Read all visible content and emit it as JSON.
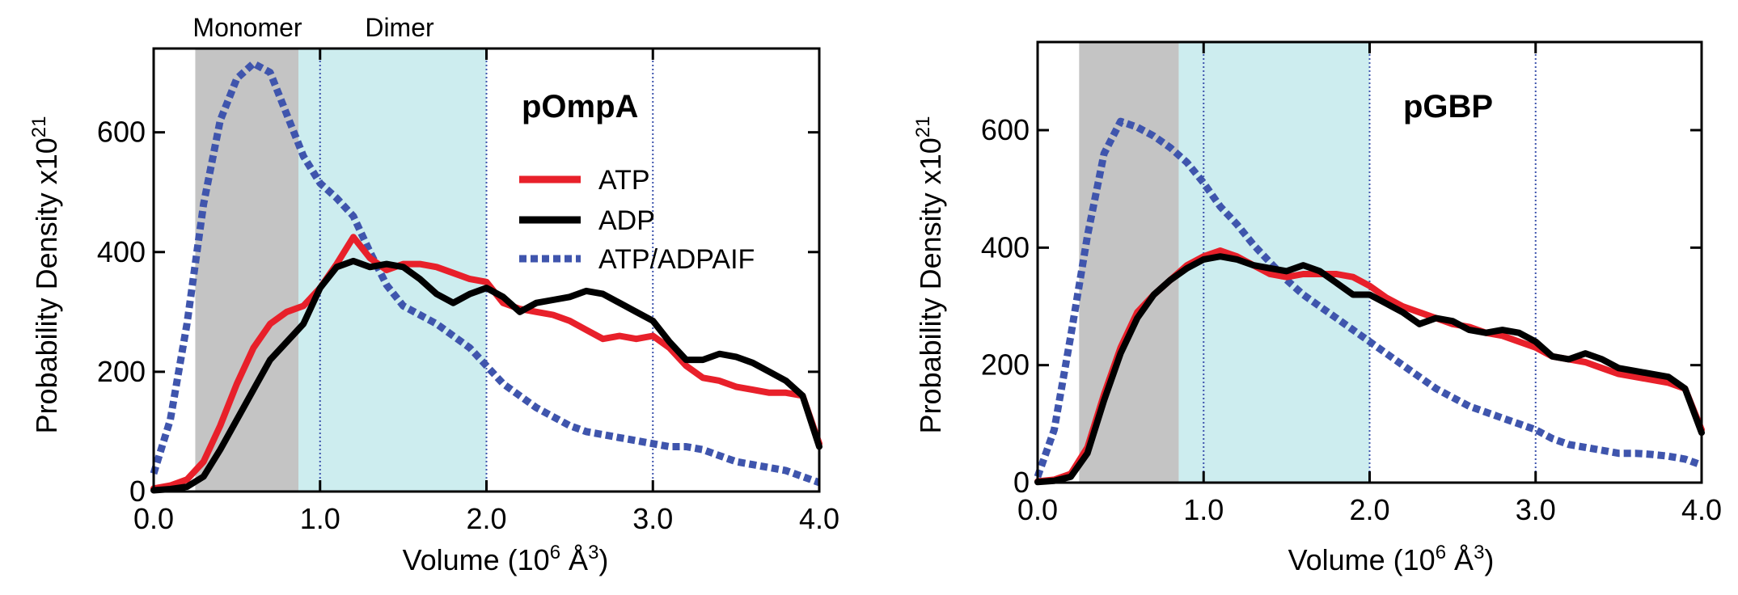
{
  "colors": {
    "atp": "#e8202a",
    "adp": "#000000",
    "alf": "#3f55ad",
    "monomer_band": "#c4c4c4",
    "dimer_band": "#cdedef",
    "grid": "#3f55ad"
  },
  "region_labels": {
    "monomer": "Monomer",
    "dimer": "Dimer"
  },
  "chart_data": [
    {
      "type": "line",
      "title": "pOmpA",
      "xlabel_main": "Volume (10",
      "xlabel_exp": "6",
      "xlabel_unit": " Å",
      "xlabel_unit_exp": "3",
      "xlabel_close": ")",
      "ylabel_main": "Probability Density x10",
      "ylabel_exp": "21",
      "xlim": [
        0,
        4
      ],
      "ylim": [
        0,
        740
      ],
      "xticks": [
        0,
        1,
        2,
        3,
        4
      ],
      "xtick_labels": [
        "0.0",
        "1.0",
        "2.0",
        "3.0",
        "4.0"
      ],
      "yticks": [
        0,
        200,
        400,
        600
      ],
      "ytick_labels": [
        "0",
        "200",
        "400",
        "600"
      ],
      "grid_x": [
        1,
        2,
        3
      ],
      "bands": [
        {
          "name": "monomer",
          "x0": 0.25,
          "x1": 0.87
        },
        {
          "name": "dimer",
          "x0": 0.87,
          "x1": 2.0
        }
      ],
      "legend": {
        "position": "right",
        "entries": [
          "ATP",
          "ADP",
          "ATP/ADPAIF"
        ]
      },
      "series": [
        {
          "name": "ATP",
          "key": "atp",
          "style": "solid",
          "x": [
            0,
            0.1,
            0.2,
            0.3,
            0.4,
            0.5,
            0.6,
            0.7,
            0.8,
            0.9,
            1.0,
            1.1,
            1.2,
            1.3,
            1.4,
            1.5,
            1.6,
            1.7,
            1.8,
            1.9,
            2.0,
            2.1,
            2.2,
            2.3,
            2.4,
            2.5,
            2.6,
            2.7,
            2.8,
            2.9,
            3.0,
            3.1,
            3.2,
            3.3,
            3.4,
            3.5,
            3.6,
            3.7,
            3.8,
            3.9,
            4.0
          ],
          "values": [
            5,
            10,
            20,
            50,
            110,
            180,
            240,
            280,
            300,
            310,
            340,
            380,
            425,
            390,
            370,
            380,
            380,
            375,
            365,
            355,
            350,
            315,
            305,
            300,
            295,
            285,
            270,
            255,
            260,
            255,
            260,
            240,
            210,
            190,
            185,
            175,
            170,
            165,
            165,
            160,
            80
          ]
        },
        {
          "name": "ADP",
          "key": "adp",
          "style": "solid",
          "x": [
            0,
            0.1,
            0.2,
            0.3,
            0.4,
            0.5,
            0.6,
            0.7,
            0.8,
            0.9,
            1.0,
            1.1,
            1.2,
            1.3,
            1.4,
            1.5,
            1.6,
            1.7,
            1.8,
            1.9,
            2.0,
            2.1,
            2.2,
            2.3,
            2.4,
            2.5,
            2.6,
            2.7,
            2.8,
            2.9,
            3.0,
            3.1,
            3.2,
            3.3,
            3.4,
            3.5,
            3.6,
            3.7,
            3.8,
            3.9,
            4.0
          ],
          "values": [
            2,
            4,
            8,
            25,
            70,
            120,
            170,
            220,
            250,
            280,
            340,
            375,
            385,
            375,
            380,
            375,
            355,
            330,
            315,
            330,
            340,
            325,
            300,
            315,
            320,
            325,
            335,
            330,
            315,
            300,
            285,
            250,
            220,
            220,
            230,
            225,
            215,
            200,
            185,
            160,
            75
          ]
        },
        {
          "name": "ATP/ADPAIF",
          "key": "alf",
          "style": "dotted",
          "x": [
            0,
            0.1,
            0.2,
            0.3,
            0.4,
            0.5,
            0.6,
            0.7,
            0.8,
            0.9,
            1.0,
            1.1,
            1.2,
            1.3,
            1.4,
            1.5,
            1.6,
            1.7,
            1.8,
            1.9,
            2.0,
            2.1,
            2.2,
            2.3,
            2.4,
            2.5,
            2.6,
            2.7,
            2.8,
            2.9,
            3.0,
            3.1,
            3.2,
            3.3,
            3.4,
            3.5,
            3.6,
            3.7,
            3.8,
            3.9,
            4.0
          ],
          "values": [
            30,
            120,
            280,
            480,
            620,
            690,
            715,
            700,
            630,
            560,
            515,
            490,
            460,
            400,
            345,
            310,
            295,
            280,
            260,
            240,
            210,
            180,
            160,
            140,
            125,
            110,
            100,
            95,
            90,
            85,
            80,
            75,
            75,
            70,
            60,
            50,
            45,
            40,
            35,
            25,
            15
          ]
        }
      ]
    },
    {
      "type": "line",
      "title": "pGBP",
      "xlabel_main": "Volume (10",
      "xlabel_exp": "6",
      "xlabel_unit": " Å",
      "xlabel_unit_exp": "3",
      "xlabel_close": ")",
      "ylabel_main": "Probability Density x10",
      "ylabel_exp": "21",
      "xlim": [
        0,
        4
      ],
      "ylim": [
        0,
        750
      ],
      "xticks": [
        0,
        1,
        2,
        3,
        4
      ],
      "xtick_labels": [
        "0.0",
        "1.0",
        "2.0",
        "3.0",
        "4.0"
      ],
      "yticks": [
        0,
        200,
        400,
        600
      ],
      "ytick_labels": [
        "0",
        "200",
        "400",
        "600"
      ],
      "grid_x": [
        1,
        2,
        3
      ],
      "bands": [
        {
          "name": "monomer",
          "x0": 0.25,
          "x1": 0.85
        },
        {
          "name": "dimer",
          "x0": 0.85,
          "x1": 2.0
        }
      ],
      "legend": null,
      "series": [
        {
          "name": "ATP",
          "key": "atp",
          "style": "solid",
          "x": [
            0,
            0.1,
            0.2,
            0.3,
            0.4,
            0.5,
            0.6,
            0.7,
            0.8,
            0.9,
            1.0,
            1.1,
            1.2,
            1.3,
            1.4,
            1.5,
            1.6,
            1.7,
            1.8,
            1.9,
            2.0,
            2.1,
            2.2,
            2.3,
            2.4,
            2.5,
            2.6,
            2.7,
            2.8,
            2.9,
            3.0,
            3.1,
            3.2,
            3.3,
            3.4,
            3.5,
            3.6,
            3.7,
            3.8,
            3.9,
            4.0
          ],
          "values": [
            2,
            5,
            15,
            60,
            150,
            230,
            290,
            320,
            345,
            370,
            385,
            395,
            385,
            370,
            355,
            350,
            355,
            355,
            355,
            350,
            335,
            315,
            300,
            290,
            280,
            270,
            265,
            255,
            250,
            240,
            230,
            215,
            210,
            205,
            195,
            185,
            180,
            175,
            170,
            160,
            90
          ]
        },
        {
          "name": "ADP",
          "key": "adp",
          "style": "solid",
          "x": [
            0,
            0.1,
            0.2,
            0.3,
            0.4,
            0.5,
            0.6,
            0.7,
            0.8,
            0.9,
            1.0,
            1.1,
            1.2,
            1.3,
            1.4,
            1.5,
            1.6,
            1.7,
            1.8,
            1.9,
            2.0,
            2.1,
            2.2,
            2.3,
            2.4,
            2.5,
            2.6,
            2.7,
            2.8,
            2.9,
            3.0,
            3.1,
            3.2,
            3.3,
            3.4,
            3.5,
            3.6,
            3.7,
            3.8,
            3.9,
            4.0
          ],
          "values": [
            1,
            3,
            10,
            50,
            140,
            220,
            280,
            320,
            345,
            365,
            380,
            385,
            380,
            370,
            365,
            360,
            370,
            360,
            340,
            320,
            320,
            305,
            290,
            270,
            280,
            275,
            260,
            255,
            260,
            255,
            240,
            215,
            210,
            220,
            210,
            195,
            190,
            185,
            180,
            160,
            85
          ]
        },
        {
          "name": "ATP/ADPAIF",
          "key": "alf",
          "style": "dotted",
          "x": [
            0,
            0.1,
            0.2,
            0.3,
            0.4,
            0.5,
            0.6,
            0.7,
            0.8,
            0.9,
            1.0,
            1.1,
            1.2,
            1.3,
            1.4,
            1.5,
            1.6,
            1.7,
            1.8,
            1.9,
            2.0,
            2.1,
            2.2,
            2.3,
            2.4,
            2.5,
            2.6,
            2.7,
            2.8,
            2.9,
            3.0,
            3.1,
            3.2,
            3.3,
            3.4,
            3.5,
            3.6,
            3.7,
            3.8,
            3.9,
            4.0
          ],
          "values": [
            10,
            90,
            250,
            420,
            560,
            615,
            605,
            590,
            570,
            545,
            510,
            470,
            440,
            405,
            375,
            345,
            320,
            300,
            280,
            260,
            240,
            220,
            200,
            180,
            160,
            145,
            130,
            120,
            110,
            100,
            90,
            75,
            65,
            60,
            55,
            50,
            50,
            48,
            45,
            40,
            30
          ]
        }
      ]
    }
  ]
}
